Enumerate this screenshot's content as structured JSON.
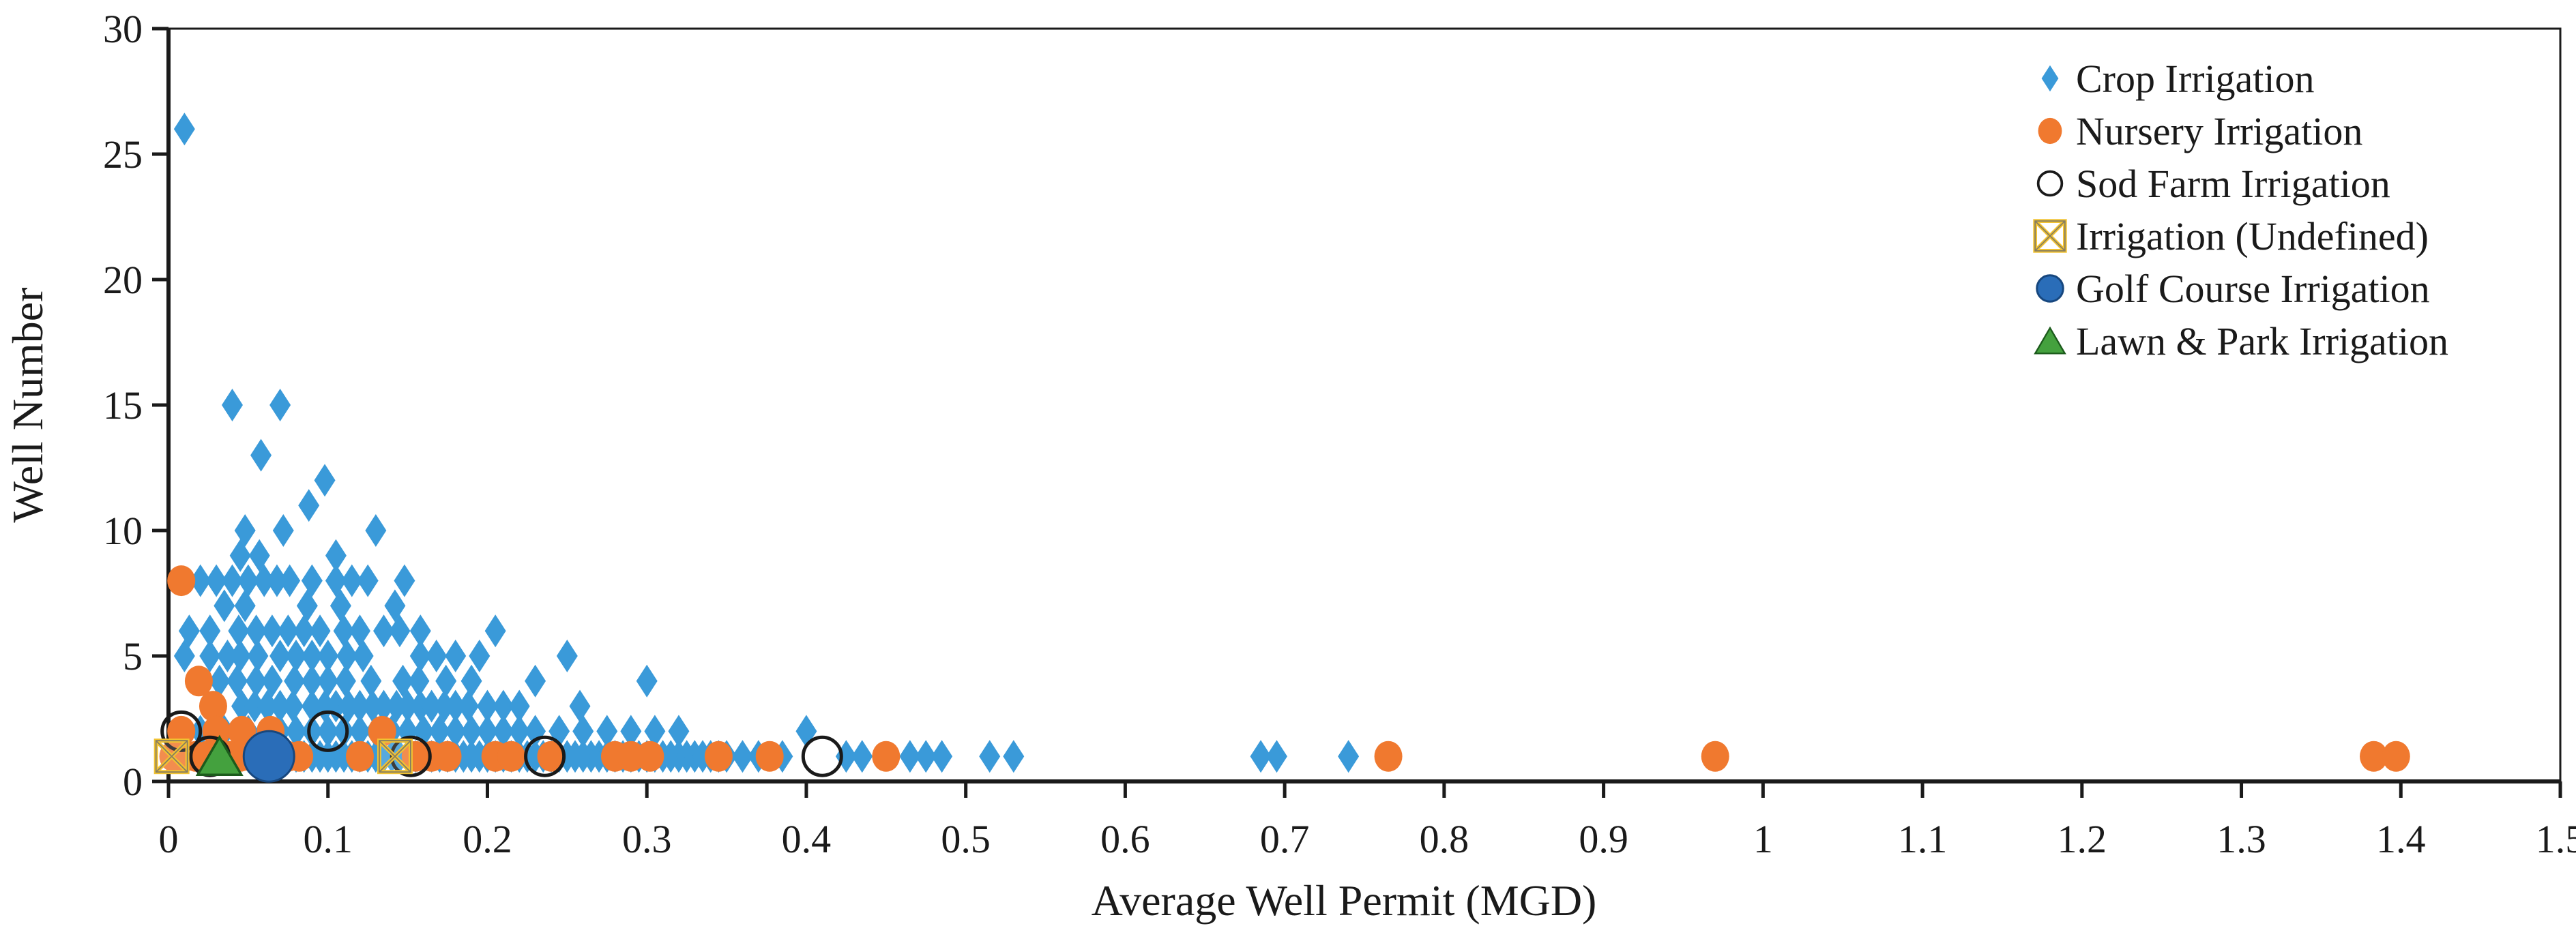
{
  "chart_data": {
    "type": "scatter",
    "title": "",
    "xlabel": "Average Well Permit (MGD)",
    "ylabel": "Well Number",
    "xlim": [
      0,
      1.5
    ],
    "ylim": [
      0,
      30
    ],
    "grid": false,
    "legend_position": "top-right",
    "x_ticks": [
      {
        "value": 0.0,
        "label": "0"
      },
      {
        "value": 0.1,
        "label": "0.1"
      },
      {
        "value": 0.2,
        "label": "0.2"
      },
      {
        "value": 0.3,
        "label": "0.3"
      },
      {
        "value": 0.4,
        "label": "0.4"
      },
      {
        "value": 0.5,
        "label": "0.5"
      },
      {
        "value": 0.6,
        "label": "0.6"
      },
      {
        "value": 0.7,
        "label": "0.7"
      },
      {
        "value": 0.8,
        "label": "0.8"
      },
      {
        "value": 0.9,
        "label": "0.9"
      },
      {
        "value": 1.0,
        "label": "1"
      },
      {
        "value": 1.1,
        "label": "1.1"
      },
      {
        "value": 1.2,
        "label": "1.2"
      },
      {
        "value": 1.3,
        "label": "1.3"
      },
      {
        "value": 1.4,
        "label": "1.4"
      },
      {
        "value": 1.5,
        "label": "1.5"
      }
    ],
    "y_ticks": [
      {
        "value": 0,
        "label": "0"
      },
      {
        "value": 5,
        "label": "5"
      },
      {
        "value": 10,
        "label": "10"
      },
      {
        "value": 15,
        "label": "15"
      },
      {
        "value": 20,
        "label": "20"
      },
      {
        "value": 25,
        "label": "25"
      },
      {
        "value": 30,
        "label": "30"
      }
    ],
    "series": [
      {
        "name": "Crop Irrigation",
        "marker": "diamond",
        "color": "#3a9ad9",
        "points": [
          [
            0.01,
            26
          ],
          [
            0.04,
            15
          ],
          [
            0.07,
            15
          ],
          [
            0.058,
            13
          ],
          [
            0.098,
            12
          ],
          [
            0.088,
            11
          ],
          [
            0.048,
            10
          ],
          [
            0.072,
            10
          ],
          [
            0.13,
            10
          ],
          [
            0.045,
            9
          ],
          [
            0.057,
            9
          ],
          [
            0.105,
            9
          ],
          [
            0.02,
            8
          ],
          [
            0.03,
            8
          ],
          [
            0.04,
            8
          ],
          [
            0.05,
            8
          ],
          [
            0.06,
            8
          ],
          [
            0.068,
            8
          ],
          [
            0.076,
            8
          ],
          [
            0.09,
            8
          ],
          [
            0.105,
            8
          ],
          [
            0.115,
            8
          ],
          [
            0.125,
            8
          ],
          [
            0.148,
            8
          ],
          [
            0.035,
            7
          ],
          [
            0.048,
            7
          ],
          [
            0.087,
            7
          ],
          [
            0.108,
            7
          ],
          [
            0.142,
            7
          ],
          [
            0.013,
            6
          ],
          [
            0.026,
            6
          ],
          [
            0.044,
            6
          ],
          [
            0.055,
            6
          ],
          [
            0.065,
            6
          ],
          [
            0.075,
            6
          ],
          [
            0.085,
            6
          ],
          [
            0.095,
            6
          ],
          [
            0.11,
            6
          ],
          [
            0.12,
            6
          ],
          [
            0.135,
            6
          ],
          [
            0.145,
            6
          ],
          [
            0.158,
            6
          ],
          [
            0.205,
            6
          ],
          [
            0.01,
            5
          ],
          [
            0.026,
            5
          ],
          [
            0.037,
            5
          ],
          [
            0.045,
            5
          ],
          [
            0.056,
            5
          ],
          [
            0.07,
            5
          ],
          [
            0.08,
            5
          ],
          [
            0.09,
            5
          ],
          [
            0.1,
            5
          ],
          [
            0.112,
            5
          ],
          [
            0.122,
            5
          ],
          [
            0.158,
            5
          ],
          [
            0.168,
            5
          ],
          [
            0.18,
            5
          ],
          [
            0.195,
            5
          ],
          [
            0.25,
            5
          ],
          [
            0.032,
            4
          ],
          [
            0.043,
            4
          ],
          [
            0.055,
            4
          ],
          [
            0.065,
            4
          ],
          [
            0.079,
            4
          ],
          [
            0.09,
            4
          ],
          [
            0.1,
            4
          ],
          [
            0.111,
            4
          ],
          [
            0.127,
            4
          ],
          [
            0.147,
            4
          ],
          [
            0.157,
            4
          ],
          [
            0.174,
            4
          ],
          [
            0.19,
            4
          ],
          [
            0.23,
            4
          ],
          [
            0.3,
            4
          ],
          [
            0.046,
            3
          ],
          [
            0.054,
            3
          ],
          [
            0.062,
            3
          ],
          [
            0.07,
            3
          ],
          [
            0.078,
            3
          ],
          [
            0.09,
            3
          ],
          [
            0.098,
            3
          ],
          [
            0.105,
            3
          ],
          [
            0.113,
            3
          ],
          [
            0.12,
            3
          ],
          [
            0.128,
            3
          ],
          [
            0.135,
            3
          ],
          [
            0.143,
            3
          ],
          [
            0.15,
            3
          ],
          [
            0.158,
            3
          ],
          [
            0.165,
            3
          ],
          [
            0.173,
            3
          ],
          [
            0.18,
            3
          ],
          [
            0.188,
            3
          ],
          [
            0.2,
            3
          ],
          [
            0.21,
            3
          ],
          [
            0.22,
            3
          ],
          [
            0.258,
            3
          ],
          [
            0.02,
            2
          ],
          [
            0.035,
            2
          ],
          [
            0.05,
            2
          ],
          [
            0.07,
            2
          ],
          [
            0.08,
            2
          ],
          [
            0.09,
            2
          ],
          [
            0.1,
            2
          ],
          [
            0.11,
            2
          ],
          [
            0.12,
            2
          ],
          [
            0.13,
            2
          ],
          [
            0.14,
            2
          ],
          [
            0.15,
            2
          ],
          [
            0.16,
            2
          ],
          [
            0.17,
            2
          ],
          [
            0.18,
            2
          ],
          [
            0.19,
            2
          ],
          [
            0.2,
            2
          ],
          [
            0.21,
            2
          ],
          [
            0.22,
            2
          ],
          [
            0.23,
            2
          ],
          [
            0.245,
            2
          ],
          [
            0.26,
            2
          ],
          [
            0.275,
            2
          ],
          [
            0.29,
            2
          ],
          [
            0.305,
            2
          ],
          [
            0.32,
            2
          ],
          [
            0.4,
            2
          ],
          [
            0.03,
            1
          ],
          [
            0.04,
            1
          ],
          [
            0.05,
            1
          ],
          [
            0.06,
            1
          ],
          [
            0.07,
            1
          ],
          [
            0.075,
            1
          ],
          [
            0.08,
            1
          ],
          [
            0.085,
            1
          ],
          [
            0.09,
            1
          ],
          [
            0.095,
            1
          ],
          [
            0.1,
            1
          ],
          [
            0.105,
            1
          ],
          [
            0.11,
            1
          ],
          [
            0.115,
            1
          ],
          [
            0.12,
            1
          ],
          [
            0.125,
            1
          ],
          [
            0.13,
            1
          ],
          [
            0.135,
            1
          ],
          [
            0.14,
            1
          ],
          [
            0.145,
            1
          ],
          [
            0.15,
            1
          ],
          [
            0.155,
            1
          ],
          [
            0.16,
            1
          ],
          [
            0.165,
            1
          ],
          [
            0.17,
            1
          ],
          [
            0.175,
            1
          ],
          [
            0.18,
            1
          ],
          [
            0.185,
            1
          ],
          [
            0.19,
            1
          ],
          [
            0.195,
            1
          ],
          [
            0.2,
            1
          ],
          [
            0.205,
            1
          ],
          [
            0.21,
            1
          ],
          [
            0.215,
            1
          ],
          [
            0.22,
            1
          ],
          [
            0.225,
            1
          ],
          [
            0.23,
            1
          ],
          [
            0.235,
            1
          ],
          [
            0.24,
            1
          ],
          [
            0.245,
            1
          ],
          [
            0.25,
            1
          ],
          [
            0.255,
            1
          ],
          [
            0.26,
            1
          ],
          [
            0.265,
            1
          ],
          [
            0.27,
            1
          ],
          [
            0.275,
            1
          ],
          [
            0.28,
            1
          ],
          [
            0.285,
            1
          ],
          [
            0.29,
            1
          ],
          [
            0.295,
            1
          ],
          [
            0.3,
            1
          ],
          [
            0.305,
            1
          ],
          [
            0.31,
            1
          ],
          [
            0.315,
            1
          ],
          [
            0.32,
            1
          ],
          [
            0.325,
            1
          ],
          [
            0.33,
            1
          ],
          [
            0.335,
            1
          ],
          [
            0.34,
            1
          ],
          [
            0.345,
            1
          ],
          [
            0.35,
            1
          ],
          [
            0.36,
            1
          ],
          [
            0.37,
            1
          ],
          [
            0.385,
            1
          ],
          [
            0.425,
            1
          ],
          [
            0.435,
            1
          ],
          [
            0.465,
            1
          ],
          [
            0.475,
            1
          ],
          [
            0.485,
            1
          ],
          [
            0.515,
            1
          ],
          [
            0.53,
            1
          ],
          [
            0.685,
            1
          ],
          [
            0.695,
            1
          ],
          [
            0.74,
            1
          ]
        ]
      },
      {
        "name": "Nursery Irrigation",
        "marker": "circle",
        "color": "#f0792f",
        "points": [
          [
            0.008,
            8
          ],
          [
            0.019,
            4
          ],
          [
            0.028,
            3
          ],
          [
            0.008,
            2
          ],
          [
            0.03,
            2
          ],
          [
            0.046,
            2
          ],
          [
            0.064,
            2
          ],
          [
            0.134,
            2
          ],
          [
            0.003,
            1
          ],
          [
            0.01,
            1
          ],
          [
            0.017,
            1
          ],
          [
            0.024,
            1
          ],
          [
            0.031,
            1
          ],
          [
            0.038,
            1
          ],
          [
            0.045,
            1
          ],
          [
            0.052,
            1
          ],
          [
            0.06,
            1
          ],
          [
            0.075,
            1
          ],
          [
            0.082,
            1
          ],
          [
            0.12,
            1
          ],
          [
            0.155,
            1
          ],
          [
            0.165,
            1
          ],
          [
            0.175,
            1
          ],
          [
            0.205,
            1
          ],
          [
            0.215,
            1
          ],
          [
            0.24,
            1
          ],
          [
            0.28,
            1
          ],
          [
            0.29,
            1
          ],
          [
            0.302,
            1
          ],
          [
            0.345,
            1
          ],
          [
            0.377,
            1
          ],
          [
            0.45,
            1
          ],
          [
            0.765,
            1
          ],
          [
            0.97,
            1
          ],
          [
            1.383,
            1
          ],
          [
            1.397,
            1
          ]
        ]
      },
      {
        "name": "Sod Farm Irrigation",
        "marker": "open-circle",
        "color": "#1a1a1a",
        "points": [
          [
            0.008,
            2
          ],
          [
            0.1,
            2
          ],
          [
            0.026,
            1
          ],
          [
            0.152,
            1
          ],
          [
            0.236,
            1
          ],
          [
            0.41,
            1
          ]
        ]
      },
      {
        "name": "Irrigation (Undefined)",
        "marker": "crossed-square",
        "color": "#f1c232",
        "points": [
          [
            0.002,
            1
          ],
          [
            0.142,
            1
          ]
        ]
      },
      {
        "name": "Golf Course Irrigation",
        "marker": "filled-circle-large",
        "color": "#2a6db8",
        "points": [
          [
            0.063,
            1
          ]
        ]
      },
      {
        "name": "Lawn & Park Irrigation",
        "marker": "triangle",
        "color": "#44a13e",
        "points": [
          [
            0.032,
            1
          ]
        ]
      }
    ]
  },
  "colors": {
    "axis": "#1a1a1a",
    "background": "#ffffff",
    "crop_blue": "#3a9ad9",
    "nursery_orange": "#f0792f",
    "sod_black": "#1a1a1a",
    "undefined_gold": "#f1c232",
    "golf_blue": "#2a6db8",
    "lawn_green": "#44a13e"
  }
}
